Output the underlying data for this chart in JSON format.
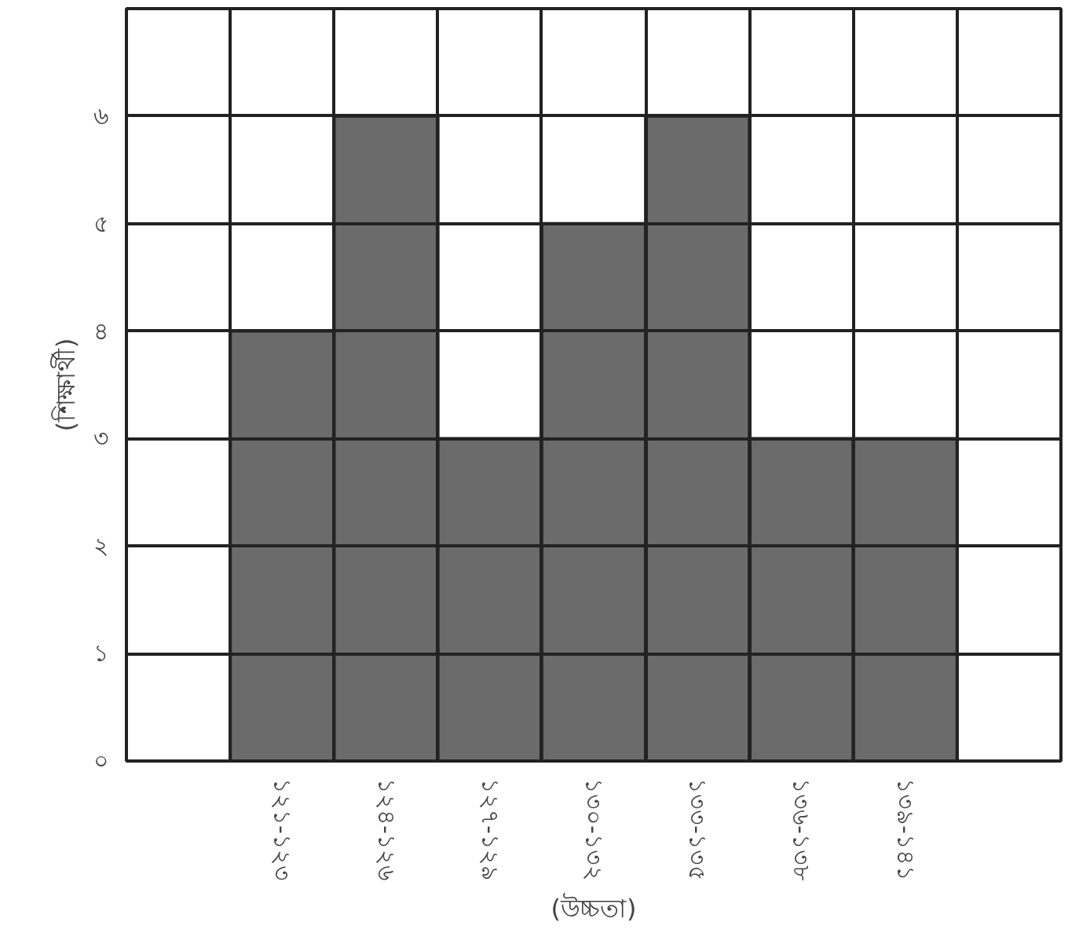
{
  "chart_data": {
    "type": "bar",
    "xlabel": "(উচ্চতা)",
    "ylabel": "(শিক্ষার্থী)",
    "categories": [
      null,
      "১২১-১২৩",
      "১২৪-১২৬",
      "১২৭-১২৯",
      "১৩০-১৩২",
      "১৩৩-১৩৫",
      "১৩৬-১৩৮",
      "১৩৯-১৪১",
      null
    ],
    "values": [
      null,
      4,
      6,
      3,
      5,
      6,
      3,
      3,
      null
    ],
    "color": "#6b6b6b",
    "ylim": [
      0,
      7
    ],
    "yticks": [
      {
        "value": 0,
        "label": "০"
      },
      {
        "value": 1,
        "label": "১"
      },
      {
        "value": 2,
        "label": "২"
      },
      {
        "value": 3,
        "label": "৩"
      },
      {
        "value": 4,
        "label": "৪"
      },
      {
        "value": 5,
        "label": "৫"
      },
      {
        "value": 6,
        "label": "৬"
      },
      {
        "value": 7,
        "label": null
      }
    ],
    "grid": true
  }
}
